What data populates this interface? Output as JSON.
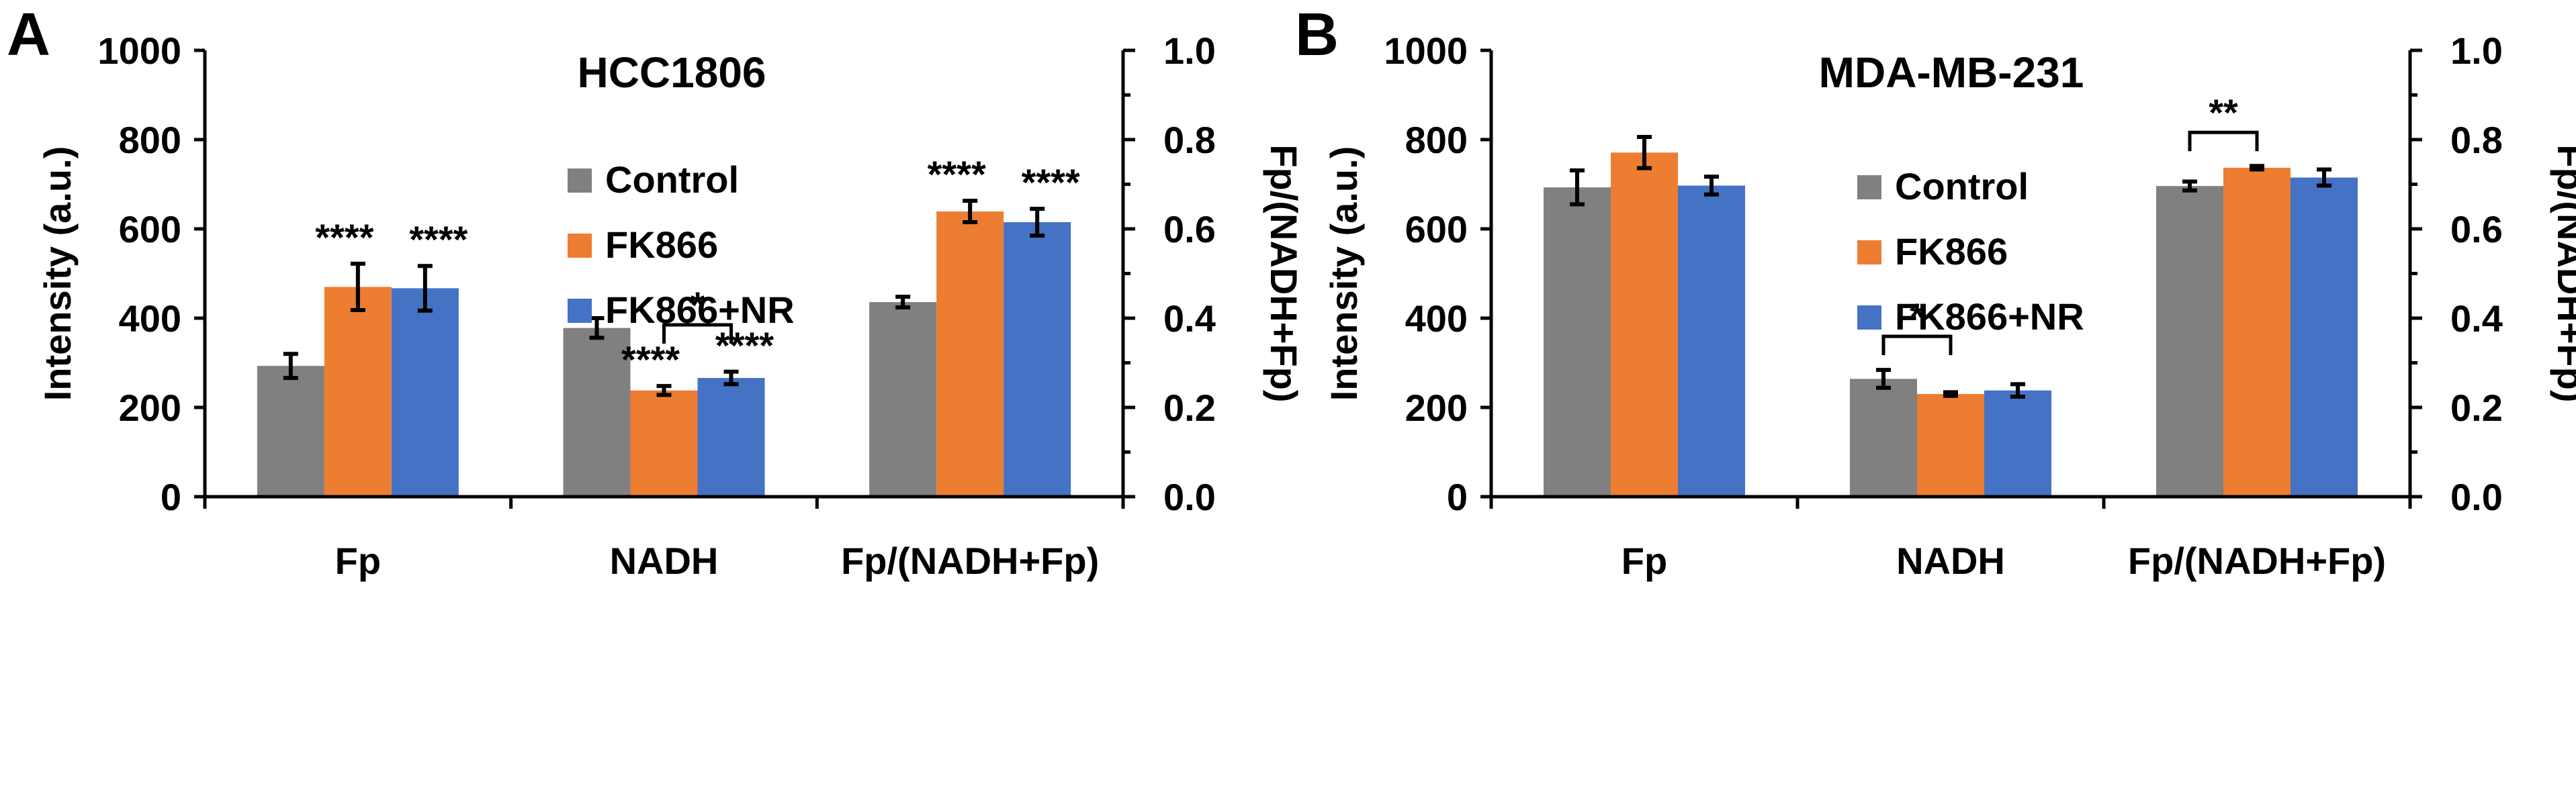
{
  "colors": {
    "Control": "#808080",
    "FK866": "#ED7D31",
    "FK866+NR": "#4472C4"
  },
  "chart_data": [
    {
      "type": "bar",
      "panel": "A",
      "title": "HCC1806",
      "ylabel": "Intensity (a.u.)",
      "y2label": "Fp/(NADH+Fp)",
      "ylim": [
        0,
        1000
      ],
      "y2lim": [
        0,
        1.0
      ],
      "yticks": [
        "0",
        "200",
        "400",
        "600",
        "800",
        "1000"
      ],
      "y2ticks": [
        "0.0",
        "0.2",
        "0.4",
        "0.6",
        "0.8",
        "1.0"
      ],
      "categories": [
        "Fp",
        "NADH",
        "Fp/(NADH+Fp)"
      ],
      "legend": {
        "placement": "upper-center",
        "entries": [
          "Control",
          "FK866",
          "FK866+NR"
        ]
      },
      "series": [
        {
          "name": "Control",
          "values": [
            293,
            378,
            436
          ],
          "errors": [
            27,
            22,
            12
          ]
        },
        {
          "name": "FK866",
          "values": [
            470,
            238,
            639
          ],
          "errors": [
            52,
            10,
            24
          ]
        },
        {
          "name": "FK866+NR",
          "values": [
            467,
            266,
            615
          ],
          "errors": [
            50,
            14,
            30
          ]
        }
      ],
      "annotations": [
        {
          "text": "****",
          "category": 0,
          "series": 1
        },
        {
          "text": "****",
          "category": 0,
          "series": 2
        },
        {
          "text": "****",
          "category": 1,
          "series": 1
        },
        {
          "text": "****",
          "category": 1,
          "series": 2
        },
        {
          "text": "****",
          "category": 2,
          "series": 1
        },
        {
          "text": "****",
          "category": 2,
          "series": 2
        },
        {
          "text": "*",
          "category": 1,
          "bracket": [
            1,
            2
          ]
        }
      ]
    },
    {
      "type": "bar",
      "panel": "B",
      "title": "MDA-MB-231",
      "ylabel": "Intensity (a.u.)",
      "y2label": "Fp/(NADH+Fp)",
      "ylim": [
        0,
        1000
      ],
      "y2lim": [
        0,
        1.0
      ],
      "yticks": [
        "0",
        "200",
        "400",
        "600",
        "800",
        "1000"
      ],
      "y2ticks": [
        "0.0",
        "0.2",
        "0.4",
        "0.6",
        "0.8",
        "1.0"
      ],
      "categories": [
        "Fp",
        "NADH",
        "Fp/(NADH+Fp)"
      ],
      "legend": {
        "placement": "center",
        "entries": [
          "Control",
          "FK866",
          "FK866+NR"
        ]
      },
      "series": [
        {
          "name": "Control",
          "values": [
            693,
            264,
            696
          ],
          "errors": [
            38,
            20,
            10
          ]
        },
        {
          "name": "FK866",
          "values": [
            771,
            230,
            737
          ],
          "errors": [
            35,
            4,
            4
          ]
        },
        {
          "name": "FK866+NR",
          "values": [
            697,
            238,
            715
          ],
          "errors": [
            20,
            14,
            18
          ]
        }
      ],
      "annotations": [
        {
          "text": "*",
          "category": 1,
          "bracket": [
            0,
            1
          ]
        },
        {
          "text": "**",
          "category": 2,
          "bracket": [
            0,
            1
          ]
        }
      ]
    }
  ]
}
